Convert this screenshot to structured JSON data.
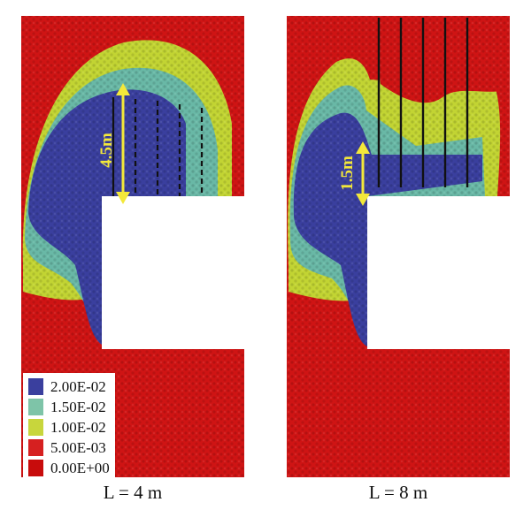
{
  "legend": {
    "items": [
      {
        "label": "2.00E-02",
        "color": "#3a3f9e"
      },
      {
        "label": "1.50E-02",
        "color": "#7ec4a8"
      },
      {
        "label": "1.00E-02",
        "color": "#c8d63c"
      },
      {
        "label": "5.00E-03",
        "color": "#d62020"
      },
      {
        "label": "0.00E+00",
        "color": "#c80c0c"
      }
    ]
  },
  "panels": [
    {
      "caption": "L = 4 m",
      "annotation": "4.5m"
    },
    {
      "caption": "L = 8 m",
      "annotation": "1.5m"
    }
  ],
  "colors": {
    "blue": "#3a3f9e",
    "teal": "#69b8a6",
    "yellow": "#c2d433",
    "red": "#cf1414",
    "black": "#111111",
    "arrow": "#f3e83a"
  }
}
